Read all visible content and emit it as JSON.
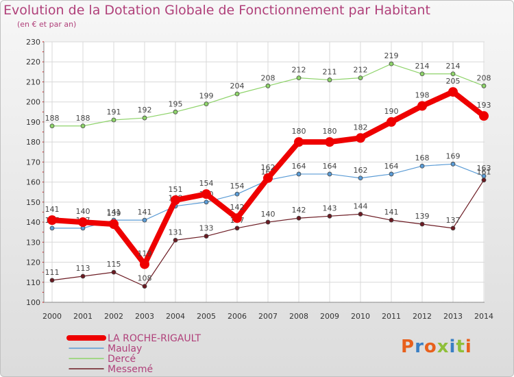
{
  "title": "Evolution de la Dotation Globale de Fonctionnement par Habitant",
  "subtitle": "(en € et par an)",
  "brand": "Proxiti",
  "colors": {
    "title": "#b0407a",
    "brand_letters": [
      "#e8601c",
      "#3a7fc4",
      "#e8601c",
      "#8fbf3a",
      "#3a7fc4",
      "#8fbf3a",
      "#e8601c"
    ]
  },
  "chart_data": {
    "type": "line",
    "title": "Evolution de la Dotation Globale de Fonctionnement par Habitant",
    "subtitle": "(en € et par an)",
    "xlabel": "",
    "ylabel": "",
    "x": [
      "2000",
      "2001",
      "2002",
      "2003",
      "2004",
      "2005",
      "2006",
      "2007",
      "2008",
      "2009",
      "2010",
      "2011",
      "2012",
      "2013",
      "2014"
    ],
    "ylim": [
      100,
      230
    ],
    "yticks": [
      100,
      110,
      120,
      130,
      140,
      150,
      160,
      170,
      180,
      190,
      200,
      210,
      220,
      230
    ],
    "grid": true,
    "legend_position": "bottom-left",
    "series": [
      {
        "name": "LA ROCHE-RIGAULT",
        "color": "#ee0000",
        "emphasis": true,
        "values": [
          141,
          140,
          139,
          119,
          151,
          154,
          142,
          162,
          180,
          180,
          182,
          190,
          198,
          205,
          193
        ]
      },
      {
        "name": "Maulay",
        "color": "#5a9bd5",
        "values": [
          137,
          137,
          141,
          141,
          148,
          150,
          154,
          161,
          164,
          164,
          162,
          164,
          168,
          169,
          163
        ]
      },
      {
        "name": "Dercé",
        "color": "#8ed36a",
        "values": [
          188,
          188,
          191,
          192,
          195,
          199,
          204,
          208,
          212,
          211,
          212,
          219,
          214,
          214,
          208
        ]
      },
      {
        "name": "Messemé",
        "color": "#6b1a22",
        "values": [
          111,
          113,
          115,
          108,
          131,
          133,
          137,
          140,
          142,
          143,
          144,
          141,
          139,
          137,
          161
        ]
      }
    ]
  }
}
